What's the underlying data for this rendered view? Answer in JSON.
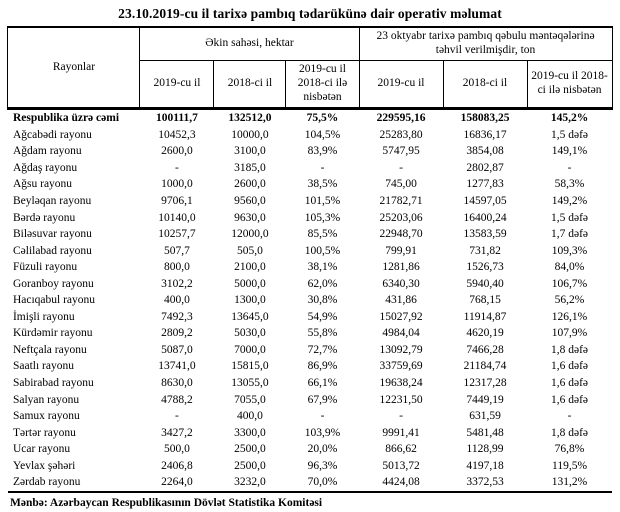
{
  "title": "23.10.2019-cu il tarixə pambıq tədarükünə dair operativ məlumat",
  "source": "Mənbə: Azərbaycan Respublikasının Dövlət Statistika Komitəsi",
  "table": {
    "col_rayonlar": "Rayonlar",
    "group_ekin": "Əkin sahəsi, hektar",
    "group_tehvil": "23 oktyabr tarixə pambıq qəbulu məntəqələrinə təhvil verilmişdir, ton",
    "sub": [
      "2019-cu il",
      "2018-ci il",
      "2019-cu il 2018-ci ilə nisbətən",
      "2019-cu il",
      "2018-ci il",
      "2019-cu il 2018-ci ilə nisbətən"
    ],
    "rows": [
      {
        "name": "Respublika üzrə cəmi",
        "bold": true,
        "values": [
          "100111,7",
          "132512,0",
          "75,5%",
          "229595,16",
          "158083,25",
          "145,2%"
        ]
      },
      {
        "name": "Ağcabədi rayonu",
        "values": [
          "10452,3",
          "10000,0",
          "104,5%",
          "25283,80",
          "16836,17",
          "1,5 dəfə"
        ]
      },
      {
        "name": "Ağdam rayonu",
        "values": [
          "2600,0",
          "3100,0",
          "83,9%",
          "5747,95",
          "3854,08",
          "149,1%"
        ]
      },
      {
        "name": "Ağdaş rayonu",
        "values": [
          "-",
          "3185,0",
          "-",
          "-",
          "2802,87",
          "-"
        ]
      },
      {
        "name": "Ağsu rayonu",
        "values": [
          "1000,0",
          "2600,0",
          "38,5%",
          "745,00",
          "1277,83",
          "58,3%"
        ]
      },
      {
        "name": "Beyləqan rayonu",
        "values": [
          "9706,1",
          "9560,0",
          "101,5%",
          "21782,71",
          "14597,05",
          "149,2%"
        ]
      },
      {
        "name": "Bərdə rayonu",
        "values": [
          "10140,0",
          "9630,0",
          "105,3%",
          "25203,06",
          "16400,24",
          "1,5 dəfə"
        ]
      },
      {
        "name": "Biləsuvar rayonu",
        "values": [
          "10257,7",
          "12000,0",
          "85,5%",
          "22948,70",
          "13583,59",
          "1,7 dəfə"
        ]
      },
      {
        "name": "Cəlilabad rayonu",
        "values": [
          "507,7",
          "505,0",
          "100,5%",
          "799,91",
          "731,82",
          "109,3%"
        ]
      },
      {
        "name": "Füzuli rayonu",
        "values": [
          "800,0",
          "2100,0",
          "38,1%",
          "1281,86",
          "1526,73",
          "84,0%"
        ]
      },
      {
        "name": "Goranboy rayonu",
        "values": [
          "3102,2",
          "5000,0",
          "62,0%",
          "6340,30",
          "5940,40",
          "106,7%"
        ]
      },
      {
        "name": "Hacıqabul rayonu",
        "values": [
          "400,0",
          "1300,0",
          "30,8%",
          "431,86",
          "768,15",
          "56,2%"
        ]
      },
      {
        "name": "İmişli rayonu",
        "values": [
          "7492,3",
          "13645,0",
          "54,9%",
          "15027,92",
          "11914,87",
          "126,1%"
        ]
      },
      {
        "name": "Kürdəmir rayonu",
        "values": [
          "2809,2",
          "5030,0",
          "55,8%",
          "4984,04",
          "4620,19",
          "107,9%"
        ]
      },
      {
        "name": "Neftçala rayonu",
        "values": [
          "5087,0",
          "7000,0",
          "72,7%",
          "13092,79",
          "7466,28",
          "1,8 dəfə"
        ]
      },
      {
        "name": "Saatlı rayonu",
        "values": [
          "13741,0",
          "15815,0",
          "86,9%",
          "33759,69",
          "21184,74",
          "1,6 dəfə"
        ]
      },
      {
        "name": "Sabirabad rayonu",
        "values": [
          "8630,0",
          "13055,0",
          "66,1%",
          "19638,24",
          "12317,28",
          "1,6 dəfə"
        ]
      },
      {
        "name": "Salyan rayonu",
        "values": [
          "4788,2",
          "7055,0",
          "67,9%",
          "12231,50",
          "7449,19",
          "1,6 dəfə"
        ]
      },
      {
        "name": "Samux rayonu",
        "values": [
          "-",
          "400,0",
          "-",
          "-",
          "631,59",
          "-"
        ]
      },
      {
        "name": "Tərtər rayonu",
        "values": [
          "3427,2",
          "3300,0",
          "103,9%",
          "9991,41",
          "5481,48",
          "1,8 dəfə"
        ]
      },
      {
        "name": "Ucar rayonu",
        "values": [
          "500,0",
          "2500,0",
          "20,0%",
          "866,62",
          "1128,99",
          "76,8%"
        ]
      },
      {
        "name": "Yevlax şəhəri",
        "values": [
          "2406,8",
          "2500,0",
          "96,3%",
          "5013,72",
          "4197,18",
          "119,5%"
        ]
      },
      {
        "name": "Zərdab rayonu",
        "values": [
          "2264,0",
          "3232,0",
          "70,0%",
          "4424,08",
          "3372,53",
          "131,2%"
        ]
      }
    ]
  }
}
